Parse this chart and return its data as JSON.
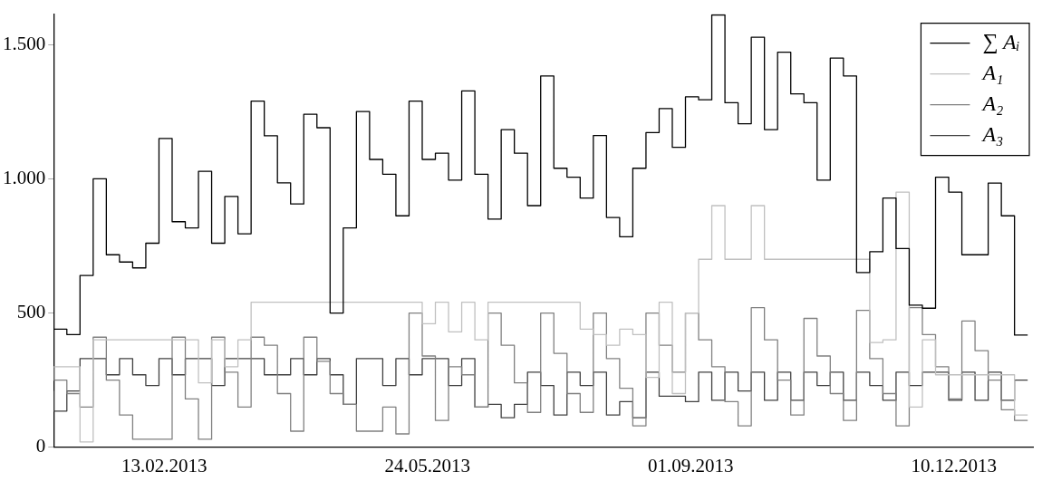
{
  "chart_data": {
    "type": "step",
    "legend": "top right",
    "ylim": [
      0,
      1613
    ],
    "yticks": [
      0,
      500,
      {
        "value": 1000,
        "label": "1.000"
      },
      {
        "value": 1500,
        "label": "1.500"
      }
    ],
    "xlim": [
      "2013-01-02",
      "2014-01-09"
    ],
    "xticks": [
      {
        "value": "2013-02-13",
        "label": "13.02.2013"
      },
      {
        "value": "2013-05-24",
        "label": "24.05.2013"
      },
      {
        "value": "2013-09-01",
        "label": "01.09.2013"
      },
      {
        "value": "2013-12-10",
        "label": "10.12.2013"
      }
    ],
    "x": [
      "2013-01-02",
      "2013-01-07",
      "2013-01-12",
      "2013-01-17",
      "2013-01-22",
      "2013-01-27",
      "2013-02-01",
      "2013-02-06",
      "2013-02-11",
      "2013-02-16",
      "2013-02-21",
      "2013-02-26",
      "2013-03-03",
      "2013-03-08",
      "2013-03-13",
      "2013-03-18",
      "2013-03-23",
      "2013-03-28",
      "2013-04-02",
      "2013-04-07",
      "2013-04-12",
      "2013-04-17",
      "2013-04-22",
      "2013-04-27",
      "2013-05-02",
      "2013-05-07",
      "2013-05-12",
      "2013-05-17",
      "2013-05-22",
      "2013-05-27",
      "2013-06-01",
      "2013-06-06",
      "2013-06-11",
      "2013-06-16",
      "2013-06-21",
      "2013-06-26",
      "2013-07-01",
      "2013-07-06",
      "2013-07-11",
      "2013-07-16",
      "2013-07-21",
      "2013-07-26",
      "2013-07-31",
      "2013-08-05",
      "2013-08-10",
      "2013-08-15",
      "2013-08-20",
      "2013-08-25",
      "2013-08-30",
      "2013-09-04",
      "2013-09-09",
      "2013-09-14",
      "2013-09-19",
      "2013-09-24",
      "2013-09-29",
      "2013-10-04",
      "2013-10-09",
      "2013-10-14",
      "2013-10-19",
      "2013-10-24",
      "2013-10-29",
      "2013-11-03",
      "2013-11-08",
      "2013-11-13",
      "2013-11-18",
      "2013-11-23",
      "2013-11-28",
      "2013-12-03",
      "2013-12-08",
      "2013-12-13",
      "2013-12-18",
      "2013-12-23",
      "2013-12-28",
      "2014-01-02",
      "2014-01-07"
    ],
    "series": [
      {
        "name": "∑ Aᵢ",
        "color": "#000000",
        "values": [
          400,
          440,
          420,
          640,
          1000,
          717,
          690,
          668,
          760,
          1150,
          840,
          817,
          1028,
          760,
          934,
          795,
          1289,
          1160,
          985,
          906,
          1240,
          1190,
          500,
          817,
          1250,
          1072,
          1017,
          862,
          1289,
          1072,
          1095,
          995,
          1327,
          1017,
          850,
          1183,
          1095,
          900,
          1383,
          1039,
          1006,
          928,
          1161,
          856,
          784,
          1039,
          1172,
          1261,
          1117,
          1305,
          1294,
          1610,
          1283,
          1205,
          1527,
          1183,
          1471,
          1316,
          1283,
          995,
          1449,
          1383,
          651,
          728,
          928,
          740,
          529,
          518,
          1006,
          950,
          717,
          717,
          984,
          862,
          418
        ]
      },
      {
        "name": "A₁",
        "color": "#c0c0c0",
        "values": [
          300,
          300,
          300,
          20,
          400,
          400,
          400,
          400,
          400,
          400,
          400,
          400,
          240,
          400,
          300,
          400,
          540,
          540,
          540,
          540,
          540,
          540,
          540,
          540,
          540,
          540,
          540,
          540,
          540,
          460,
          540,
          430,
          540,
          400,
          540,
          540,
          540,
          540,
          540,
          540,
          540,
          440,
          420,
          380,
          440,
          420,
          260,
          540,
          200,
          500,
          700,
          900,
          700,
          700,
          900,
          700,
          700,
          700,
          700,
          700,
          700,
          700,
          700,
          390,
          400,
          950,
          150,
          400,
          270,
          270,
          270,
          270,
          270,
          270,
          120
        ]
      },
      {
        "name": "A₂",
        "color": "#808080",
        "values": [
          300,
          250,
          200,
          150,
          410,
          250,
          120,
          30,
          30,
          30,
          410,
          180,
          30,
          410,
          280,
          150,
          410,
          380,
          200,
          60,
          410,
          320,
          200,
          160,
          60,
          60,
          150,
          50,
          500,
          340,
          100,
          300,
          270,
          150,
          500,
          380,
          240,
          130,
          500,
          350,
          200,
          130,
          500,
          330,
          220,
          80,
          500,
          380,
          280,
          500,
          400,
          300,
          170,
          80,
          520,
          400,
          250,
          120,
          480,
          340,
          200,
          100,
          510,
          330,
          200,
          80,
          520,
          420,
          300,
          180,
          470,
          360,
          250,
          140,
          100
        ]
      },
      {
        "name": "A₃",
        "color": "#404040",
        "values": [
          210,
          135,
          210,
          330,
          330,
          270,
          330,
          270,
          230,
          330,
          270,
          330,
          330,
          230,
          330,
          330,
          330,
          270,
          270,
          330,
          270,
          330,
          270,
          160,
          330,
          330,
          230,
          330,
          270,
          330,
          330,
          230,
          330,
          150,
          160,
          110,
          160,
          280,
          230,
          120,
          280,
          230,
          280,
          120,
          170,
          110,
          280,
          190,
          190,
          170,
          280,
          175,
          280,
          210,
          280,
          175,
          280,
          175,
          280,
          230,
          280,
          175,
          280,
          230,
          175,
          280,
          230,
          280,
          280,
          175,
          280,
          175,
          280,
          175,
          250
        ]
      }
    ]
  }
}
